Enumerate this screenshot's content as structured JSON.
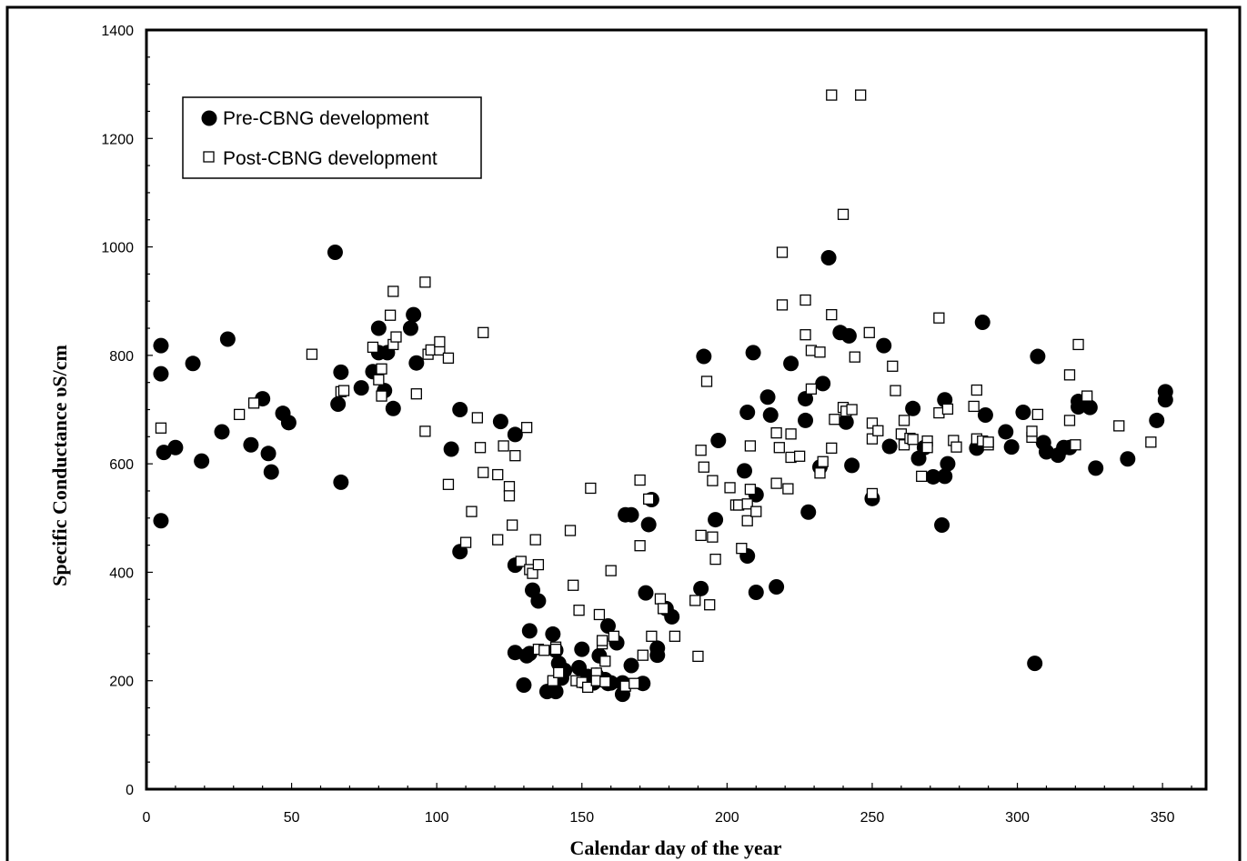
{
  "chart_data": {
    "type": "scatter",
    "title": "",
    "xlabel": "Calendar day of the year",
    "ylabel": "Specific Conductance υS/cm",
    "xlim": [
      0,
      365
    ],
    "ylim": [
      0,
      1400
    ],
    "xticks": [
      0,
      50,
      100,
      150,
      200,
      250,
      300,
      350
    ],
    "yticks": [
      0,
      200,
      400,
      600,
      800,
      1000,
      1200,
      1400
    ],
    "grid": false,
    "legend_position": "top-left",
    "series": [
      {
        "name": "Pre-CBNG development",
        "marker": "filled-circle",
        "color": "#000000",
        "points": [
          [
            5,
            818
          ],
          [
            5,
            766
          ],
          [
            5,
            495
          ],
          [
            6,
            621
          ],
          [
            10,
            630
          ],
          [
            16,
            785
          ],
          [
            19,
            605
          ],
          [
            26,
            659
          ],
          [
            28,
            830
          ],
          [
            36,
            635
          ],
          [
            40,
            720
          ],
          [
            42,
            619
          ],
          [
            43,
            585
          ],
          [
            47,
            693
          ],
          [
            49,
            676
          ],
          [
            65,
            990
          ],
          [
            66,
            710
          ],
          [
            67,
            769
          ],
          [
            67,
            566
          ],
          [
            74,
            740
          ],
          [
            78,
            770
          ],
          [
            80,
            850
          ],
          [
            80,
            805
          ],
          [
            82,
            735
          ],
          [
            83,
            805
          ],
          [
            85,
            702
          ],
          [
            91,
            850
          ],
          [
            92,
            875
          ],
          [
            93,
            786
          ],
          [
            105,
            627
          ],
          [
            108,
            700
          ],
          [
            108,
            438
          ],
          [
            122,
            678
          ],
          [
            127,
            654
          ],
          [
            127,
            413
          ],
          [
            127,
            252
          ],
          [
            130,
            192
          ],
          [
            131,
            246
          ],
          [
            132,
            292
          ],
          [
            132,
            250
          ],
          [
            133,
            367
          ],
          [
            135,
            347
          ],
          [
            138,
            180
          ],
          [
            140,
            286
          ],
          [
            141,
            180
          ],
          [
            141,
            256
          ],
          [
            142,
            232
          ],
          [
            143,
            205
          ],
          [
            144,
            219
          ],
          [
            149,
            224
          ],
          [
            150,
            258
          ],
          [
            150,
            200
          ],
          [
            152,
            208
          ],
          [
            154,
            196
          ],
          [
            155,
            210
          ],
          [
            156,
            246
          ],
          [
            158,
            202
          ],
          [
            159,
            301
          ],
          [
            159,
            195
          ],
          [
            160,
            196
          ],
          [
            162,
            270
          ],
          [
            164,
            196
          ],
          [
            164,
            175
          ],
          [
            165,
            506
          ],
          [
            167,
            506
          ],
          [
            167,
            228
          ],
          [
            171,
            195
          ],
          [
            172,
            362
          ],
          [
            173,
            488
          ],
          [
            174,
            534
          ],
          [
            176,
            260
          ],
          [
            176,
            247
          ],
          [
            179,
            333
          ],
          [
            181,
            318
          ],
          [
            191,
            370
          ],
          [
            192,
            798
          ],
          [
            196,
            497
          ],
          [
            197,
            643
          ],
          [
            206,
            587
          ],
          [
            207,
            695
          ],
          [
            207,
            430
          ],
          [
            209,
            805
          ],
          [
            210,
            543
          ],
          [
            210,
            363
          ],
          [
            214,
            723
          ],
          [
            215,
            690
          ],
          [
            217,
            373
          ],
          [
            222,
            785
          ],
          [
            227,
            720
          ],
          [
            227,
            680
          ],
          [
            228,
            511
          ],
          [
            232,
            594
          ],
          [
            233,
            748
          ],
          [
            235,
            980
          ],
          [
            239,
            842
          ],
          [
            241,
            677
          ],
          [
            242,
            836
          ],
          [
            243,
            597
          ],
          [
            250,
            536
          ],
          [
            254,
            818
          ],
          [
            256,
            632
          ],
          [
            264,
            702
          ],
          [
            266,
            610
          ],
          [
            268,
            630
          ],
          [
            271,
            576
          ],
          [
            274,
            487
          ],
          [
            275,
            718
          ],
          [
            275,
            577
          ],
          [
            276,
            600
          ],
          [
            286,
            629
          ],
          [
            288,
            861
          ],
          [
            289,
            690
          ],
          [
            296,
            659
          ],
          [
            298,
            631
          ],
          [
            302,
            695
          ],
          [
            306,
            232
          ],
          [
            307,
            798
          ],
          [
            309,
            639
          ],
          [
            310,
            622
          ],
          [
            314,
            616
          ],
          [
            316,
            630
          ],
          [
            318,
            630
          ],
          [
            321,
            715
          ],
          [
            321,
            705
          ],
          [
            325,
            704
          ],
          [
            327,
            592
          ],
          [
            338,
            609
          ],
          [
            348,
            680
          ],
          [
            351,
            733
          ],
          [
            351,
            718
          ]
        ]
      },
      {
        "name": "Post-CBNG development",
        "marker": "open-square",
        "color": "#000000",
        "points": [
          [
            5,
            666
          ],
          [
            32,
            691
          ],
          [
            37,
            712
          ],
          [
            57,
            802
          ],
          [
            67,
            733
          ],
          [
            68,
            735
          ],
          [
            78,
            815
          ],
          [
            80,
            755
          ],
          [
            81,
            775
          ],
          [
            81,
            725
          ],
          [
            84,
            874
          ],
          [
            85,
            918
          ],
          [
            85,
            820
          ],
          [
            86,
            834
          ],
          [
            93,
            729
          ],
          [
            96,
            935
          ],
          [
            96,
            660
          ],
          [
            97,
            802
          ],
          [
            98,
            810
          ],
          [
            101,
            810
          ],
          [
            101,
            825
          ],
          [
            104,
            795
          ],
          [
            104,
            562
          ],
          [
            110,
            455
          ],
          [
            112,
            512
          ],
          [
            114,
            685
          ],
          [
            115,
            630
          ],
          [
            116,
            842
          ],
          [
            116,
            584
          ],
          [
            121,
            580
          ],
          [
            121,
            460
          ],
          [
            123,
            633
          ],
          [
            125,
            558
          ],
          [
            125,
            541
          ],
          [
            126,
            487
          ],
          [
            127,
            615
          ],
          [
            129,
            420
          ],
          [
            131,
            667
          ],
          [
            132,
            405
          ],
          [
            133,
            398
          ],
          [
            134,
            460
          ],
          [
            135,
            258
          ],
          [
            135,
            414
          ],
          [
            137,
            256
          ],
          [
            140,
            200
          ],
          [
            141,
            262
          ],
          [
            141,
            258
          ],
          [
            142,
            215
          ],
          [
            146,
            477
          ],
          [
            147,
            376
          ],
          [
            148,
            200
          ],
          [
            149,
            330
          ],
          [
            150,
            197
          ],
          [
            152,
            188
          ],
          [
            153,
            555
          ],
          [
            155,
            214
          ],
          [
            155,
            200
          ],
          [
            156,
            322
          ],
          [
            157,
            268
          ],
          [
            157,
            274
          ],
          [
            158,
            198
          ],
          [
            158,
            236
          ],
          [
            160,
            403
          ],
          [
            161,
            282
          ],
          [
            165,
            190
          ],
          [
            168,
            195
          ],
          [
            170,
            570
          ],
          [
            170,
            449
          ],
          [
            171,
            247
          ],
          [
            173,
            535
          ],
          [
            174,
            282
          ],
          [
            177,
            351
          ],
          [
            178,
            333
          ],
          [
            182,
            282
          ],
          [
            189,
            348
          ],
          [
            190,
            245
          ],
          [
            191,
            468
          ],
          [
            191,
            625
          ],
          [
            192,
            594
          ],
          [
            193,
            752
          ],
          [
            194,
            340
          ],
          [
            195,
            465
          ],
          [
            195,
            569
          ],
          [
            196,
            424
          ],
          [
            201,
            556
          ],
          [
            203,
            524
          ],
          [
            204,
            524
          ],
          [
            205,
            444
          ],
          [
            207,
            495
          ],
          [
            207,
            526
          ],
          [
            208,
            633
          ],
          [
            208,
            553
          ],
          [
            210,
            512
          ],
          [
            217,
            564
          ],
          [
            217,
            657
          ],
          [
            218,
            630
          ],
          [
            219,
            990
          ],
          [
            219,
            893
          ],
          [
            221,
            554
          ],
          [
            222,
            655
          ],
          [
            222,
            612
          ],
          [
            225,
            614
          ],
          [
            227,
            838
          ],
          [
            227,
            902
          ],
          [
            229,
            738
          ],
          [
            229,
            809
          ],
          [
            232,
            806
          ],
          [
            232,
            583
          ],
          [
            233,
            604
          ],
          [
            236,
            1280
          ],
          [
            236,
            875
          ],
          [
            236,
            629
          ],
          [
            237,
            682
          ],
          [
            240,
            1060
          ],
          [
            240,
            704
          ],
          [
            241,
            697
          ],
          [
            243,
            700
          ],
          [
            244,
            797
          ],
          [
            246,
            1280
          ],
          [
            249,
            842
          ],
          [
            250,
            675
          ],
          [
            250,
            646
          ],
          [
            250,
            545
          ],
          [
            252,
            661
          ],
          [
            257,
            780
          ],
          [
            258,
            735
          ],
          [
            260,
            655
          ],
          [
            261,
            680
          ],
          [
            261,
            635
          ],
          [
            263,
            647
          ],
          [
            264,
            645
          ],
          [
            267,
            577
          ],
          [
            269,
            642
          ],
          [
            269,
            630
          ],
          [
            273,
            869
          ],
          [
            273,
            694
          ],
          [
            276,
            701
          ],
          [
            278,
            643
          ],
          [
            279,
            631
          ],
          [
            285,
            706
          ],
          [
            286,
            646
          ],
          [
            286,
            736
          ],
          [
            288,
            642
          ],
          [
            290,
            635
          ],
          [
            290,
            640
          ],
          [
            305,
            649
          ],
          [
            305,
            660
          ],
          [
            307,
            691
          ],
          [
            318,
            680
          ],
          [
            318,
            764
          ],
          [
            320,
            635
          ],
          [
            321,
            820
          ],
          [
            324,
            725
          ],
          [
            335,
            670
          ],
          [
            346,
            640
          ]
        ]
      }
    ]
  }
}
